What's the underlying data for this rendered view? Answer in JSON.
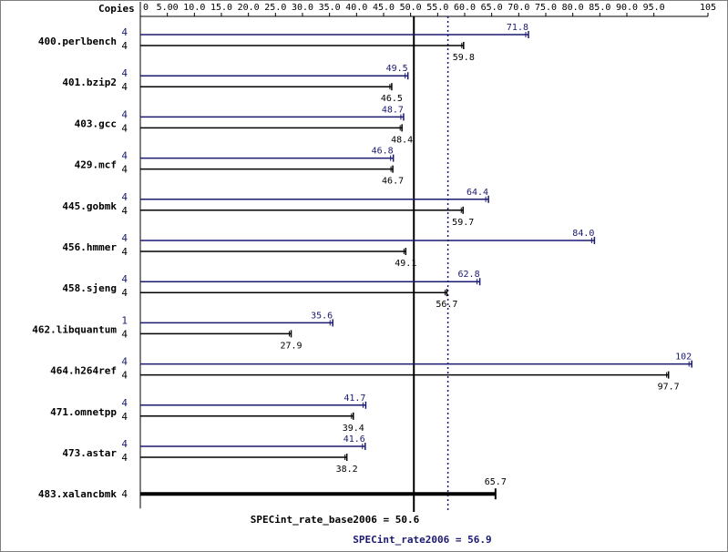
{
  "chart_data": {
    "type": "bar",
    "orientation": "horizontal",
    "copies_header": "Copies",
    "axis": {
      "ticks": [
        "0",
        "5.00",
        "10.0",
        "15.0",
        "20.0",
        "25.0",
        "30.0",
        "35.0",
        "40.0",
        "45.0",
        "50.0",
        "55.0",
        "60.0",
        "65.0",
        "70.0",
        "75.0",
        "80.0",
        "85.0",
        "90.0",
        "95.0",
        "105"
      ],
      "tick_values": [
        0,
        5,
        10,
        15,
        20,
        25,
        30,
        35,
        40,
        45,
        50,
        55,
        60,
        65,
        70,
        75,
        80,
        85,
        90,
        95,
        105
      ],
      "xlim": [
        0,
        105
      ],
      "position": "top"
    },
    "colors": {
      "peak": "#191970",
      "base": "#000000"
    },
    "benchmarks": [
      {
        "name": "400.perlbench",
        "peak_copies": "4",
        "peak": 71.8,
        "peak_label": "71.8",
        "base_copies": "4",
        "base": 59.8,
        "base_label": "59.8"
      },
      {
        "name": "401.bzip2",
        "peak_copies": "4",
        "peak": 49.5,
        "peak_label": "49.5",
        "base_copies": "4",
        "base": 46.5,
        "base_label": "46.5"
      },
      {
        "name": "403.gcc",
        "peak_copies": "4",
        "peak": 48.7,
        "peak_label": "48.7",
        "base_copies": "4",
        "base": 48.4,
        "base_label": "48.4"
      },
      {
        "name": "429.mcf",
        "peak_copies": "4",
        "peak": 46.8,
        "peak_label": "46.8",
        "base_copies": "4",
        "base": 46.7,
        "base_label": "46.7"
      },
      {
        "name": "445.gobmk",
        "peak_copies": "4",
        "peak": 64.4,
        "peak_label": "64.4",
        "base_copies": "4",
        "base": 59.7,
        "base_label": "59.7"
      },
      {
        "name": "456.hmmer",
        "peak_copies": "4",
        "peak": 84.0,
        "peak_label": "84.0",
        "base_copies": "4",
        "base": 49.1,
        "base_label": "49.1"
      },
      {
        "name": "458.sjeng",
        "peak_copies": "4",
        "peak": 62.8,
        "peak_label": "62.8",
        "base_copies": "4",
        "base": 56.7,
        "base_label": "56.7"
      },
      {
        "name": "462.libquantum",
        "peak_copies": "1",
        "peak": 35.6,
        "peak_label": "35.6",
        "base_copies": "4",
        "base": 27.9,
        "base_label": "27.9"
      },
      {
        "name": "464.h264ref",
        "peak_copies": "4",
        "peak": 102,
        "peak_label": "102",
        "base_copies": "4",
        "base": 97.7,
        "base_label": "97.7"
      },
      {
        "name": "471.omnetpp",
        "peak_copies": "4",
        "peak": 41.7,
        "peak_label": "41.7",
        "base_copies": "4",
        "base": 39.4,
        "base_label": "39.4"
      },
      {
        "name": "473.astar",
        "peak_copies": "4",
        "peak": 41.6,
        "peak_label": "41.6",
        "base_copies": "4",
        "base": 38.2,
        "base_label": "38.2"
      },
      {
        "name": "483.xalancbmk",
        "single": true,
        "base_copies": "4",
        "base": 65.7,
        "base_label": "65.7"
      }
    ],
    "reference_lines": [
      {
        "label": "SPECint_rate_base2006 = 50.6",
        "value": 50.6,
        "style": "solid",
        "color": "#000000"
      },
      {
        "label": "SPECint_rate2006 = 56.9",
        "value": 56.9,
        "style": "dotted",
        "color": "#191970"
      }
    ]
  }
}
